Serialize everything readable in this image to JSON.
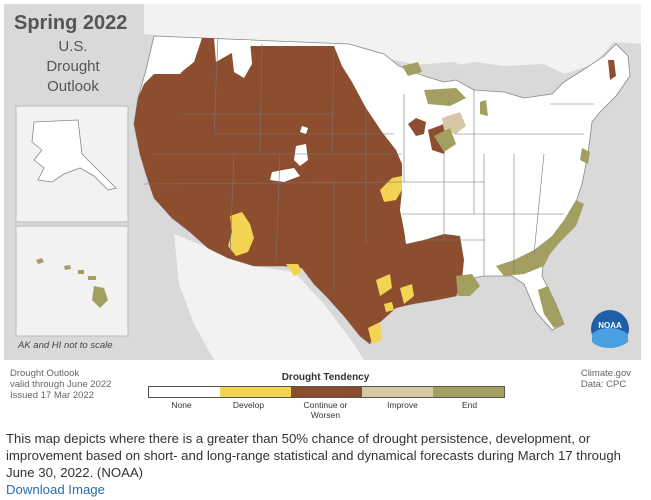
{
  "title": {
    "year": "Spring 2022",
    "line1": "U.S.",
    "line2": "Drought",
    "line3": "Outlook"
  },
  "inset_note": "AK and HI not to scale",
  "logo_text": "NOAA",
  "meta": {
    "left": [
      "Drought Outlook",
      "valid through June 2022",
      "Issued 17 Mar 2022"
    ],
    "right": [
      "Climate.gov",
      "Data: CPC"
    ]
  },
  "legend": {
    "title": "Drought Tendency",
    "items": [
      {
        "label": "None",
        "color": "#ffffff"
      },
      {
        "label": "Develop",
        "color": "#f2d352"
      },
      {
        "label": "Continue or Worsen",
        "color": "#8c4e2f"
      },
      {
        "label": "Improve",
        "color": "#d8c7a7"
      },
      {
        "label": "End",
        "color": "#a39f61"
      }
    ]
  },
  "colors": {
    "background": "#d9d9d9",
    "land": "#ffffff",
    "persist": "#8c4e2f",
    "develop": "#f2d352",
    "improve": "#d8c7a7",
    "end": "#a39f61",
    "borders": "#777777"
  },
  "caption": "This map depicts where there is a greater than 50% chance of drought persistence, development, or improvement based on short- and long-range statistical and dynamical forecasts during March 17 through June 30, 2022. (NOAA)",
  "download_link": "Download Image"
}
